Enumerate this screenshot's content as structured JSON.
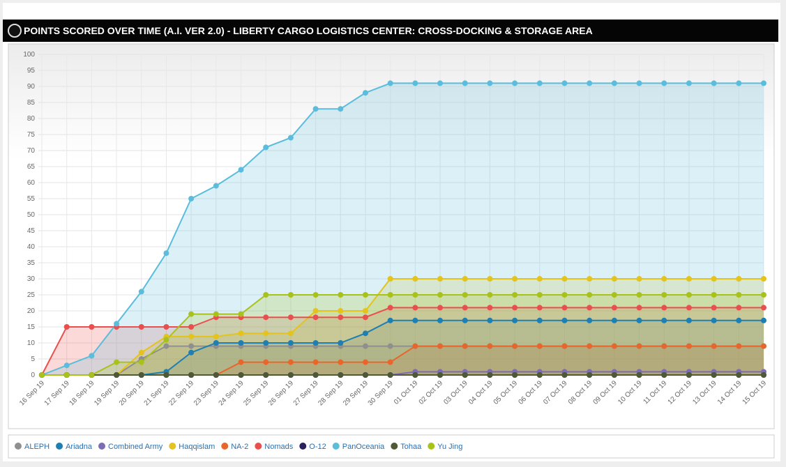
{
  "chart_data": {
    "type": "line",
    "title": "POINTS SCORED OVER TIME (A.I. VER 2.0) - LIBERTY CARGO LOGISTICS CENTER: CROSS-DOCKING & STORAGE AREA",
    "categories": [
      "16 Sep 19",
      "17 Sep 19",
      "18 Sep 19",
      "19 Sep 19",
      "20 Sep 19",
      "21 Sep 19",
      "22 Sep 19",
      "23 Sep 19",
      "24 Sep 19",
      "25 Sep 19",
      "26 Sep 19",
      "27 Sep 19",
      "28 Sep 19",
      "29 Sep 19",
      "30 Sep 19",
      "01 Oct 19",
      "02 Oct 19",
      "03 Oct 19",
      "04 Oct 19",
      "05 Oct 19",
      "06 Oct 19",
      "07 Oct 19",
      "08 Oct 19",
      "09 Oct 19",
      "10 Oct 19",
      "11 Oct 19",
      "12 Oct 19",
      "13 Oct 19",
      "14 Oct 19",
      "15 Oct 19"
    ],
    "series": [
      {
        "name": "ALEPH",
        "color": "#8f8f8f",
        "values": [
          0,
          0,
          0,
          0,
          5,
          9,
          9,
          9,
          9,
          9,
          9,
          9,
          9,
          9,
          9,
          9,
          9,
          9,
          9,
          9,
          9,
          9,
          9,
          9,
          9,
          9,
          9,
          9,
          9,
          9
        ]
      },
      {
        "name": "Ariadna",
        "color": "#1f7fb0",
        "values": [
          0,
          0,
          0,
          0,
          0,
          1,
          7,
          10,
          10,
          10,
          10,
          10,
          10,
          13,
          17,
          17,
          17,
          17,
          17,
          17,
          17,
          17,
          17,
          17,
          17,
          17,
          17,
          17,
          17,
          17
        ]
      },
      {
        "name": "Combined Army",
        "color": "#7b6cb3",
        "values": [
          0,
          0,
          0,
          0,
          0,
          0,
          0,
          0,
          0,
          0,
          0,
          0,
          0,
          0,
          0,
          1,
          1,
          1,
          1,
          1,
          1,
          1,
          1,
          1,
          1,
          1,
          1,
          1,
          1,
          1
        ]
      },
      {
        "name": "Haqqislam",
        "color": "#e3c31c",
        "values": [
          0,
          0,
          0,
          0,
          7,
          12,
          12,
          12,
          13,
          13,
          13,
          20,
          20,
          20,
          30,
          30,
          30,
          30,
          30,
          30,
          30,
          30,
          30,
          30,
          30,
          30,
          30,
          30,
          30,
          30
        ]
      },
      {
        "name": "NA-2",
        "color": "#e8662c",
        "values": [
          0,
          0,
          0,
          0,
          0,
          0,
          0,
          0,
          4,
          4,
          4,
          4,
          4,
          4,
          4,
          9,
          9,
          9,
          9,
          9,
          9,
          9,
          9,
          9,
          9,
          9,
          9,
          9,
          9,
          9
        ]
      },
      {
        "name": "Nomads",
        "color": "#e8504f",
        "values": [
          0,
          15,
          15,
          15,
          15,
          15,
          15,
          18,
          18,
          18,
          18,
          18,
          18,
          18,
          21,
          21,
          21,
          21,
          21,
          21,
          21,
          21,
          21,
          21,
          21,
          21,
          21,
          21,
          21,
          21
        ]
      },
      {
        "name": "O-12",
        "color": "#2b205e",
        "values": [
          0,
          0,
          0,
          0,
          0,
          0,
          0,
          0,
          0,
          0,
          0,
          0,
          0,
          0,
          0,
          0,
          0,
          0,
          0,
          0,
          0,
          0,
          0,
          0,
          0,
          0,
          0,
          0,
          0,
          0
        ]
      },
      {
        "name": "PanOceania",
        "color": "#5bbcdc",
        "values": [
          0,
          3,
          6,
          16,
          26,
          38,
          55,
          59,
          64,
          71,
          74,
          83,
          83,
          88,
          91,
          91,
          91,
          91,
          91,
          91,
          91,
          91,
          91,
          91,
          91,
          91,
          91,
          91,
          91,
          91
        ]
      },
      {
        "name": "Tohaa",
        "color": "#4e5a37",
        "values": [
          0,
          0,
          0,
          0,
          0,
          0,
          0,
          0,
          0,
          0,
          0,
          0,
          0,
          0,
          0,
          0,
          0,
          0,
          0,
          0,
          0,
          0,
          0,
          0,
          0,
          0,
          0,
          0,
          0,
          0
        ]
      },
      {
        "name": "Yu Jing",
        "color": "#a8c21b",
        "values": [
          0,
          0,
          0,
          4,
          4,
          11,
          19,
          19,
          19,
          25,
          25,
          25,
          25,
          25,
          25,
          25,
          25,
          25,
          25,
          25,
          25,
          25,
          25,
          25,
          25,
          25,
          25,
          25,
          25,
          25
        ]
      }
    ],
    "ylim": [
      0,
      100
    ],
    "yticks": [
      0,
      5,
      10,
      15,
      20,
      25,
      30,
      35,
      40,
      45,
      50,
      55,
      60,
      65,
      70,
      75,
      80,
      85,
      90,
      95,
      100
    ],
    "grid": true
  }
}
